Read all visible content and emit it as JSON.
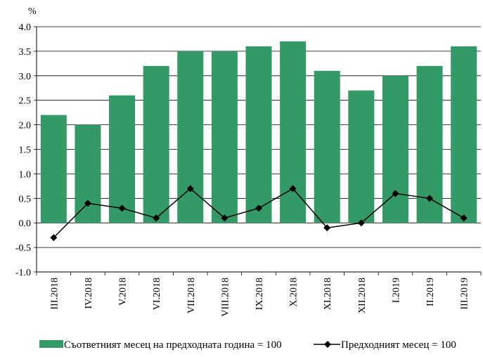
{
  "chart_data": {
    "type": "bar",
    "categories": [
      "III.2018",
      "IV.2018",
      "V.2018",
      "VI.2018",
      "VII.2018",
      "VIII.2018",
      "IX.2018",
      "X.2018",
      "XI.2018",
      "XII.2018",
      "I.2019",
      "II.2019",
      "III.2019"
    ],
    "series": [
      {
        "name": "Съответният месец на предходната година = 100",
        "type": "bar",
        "color": "#339966",
        "values": [
          2.2,
          2.0,
          2.6,
          3.2,
          3.5,
          3.5,
          3.6,
          3.7,
          3.1,
          2.7,
          3.0,
          3.2,
          3.6
        ]
      },
      {
        "name": "Предходният месец = 100",
        "type": "line",
        "marker": "diamond",
        "color": "#000000",
        "values": [
          -0.3,
          0.4,
          0.3,
          0.1,
          0.7,
          0.1,
          0.3,
          0.7,
          -0.1,
          0.0,
          0.6,
          0.5,
          0.1
        ]
      }
    ],
    "ylabel": "%",
    "ylim": [
      -1.0,
      4.0
    ],
    "yticks": [
      "-1.0",
      "-0.5",
      "0.0",
      "0.5",
      "1.0",
      "1.5",
      "2.0",
      "2.5",
      "3.0",
      "3.5",
      "4.0"
    ],
    "grid": true,
    "legend": "bottom"
  }
}
